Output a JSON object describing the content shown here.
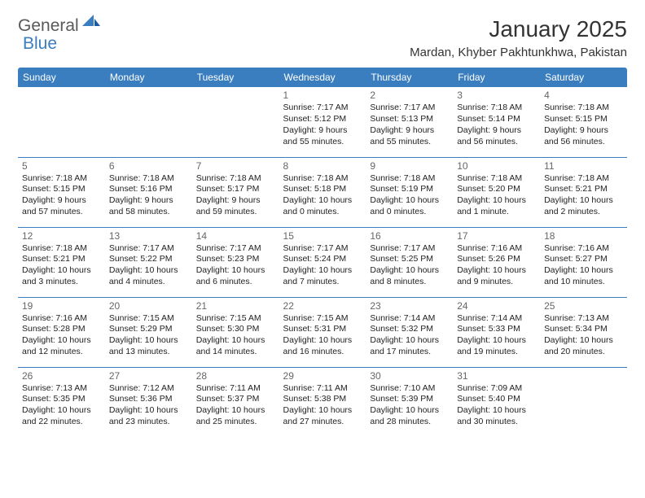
{
  "logo": {
    "text1": "General",
    "text2": "Blue"
  },
  "title": "January 2025",
  "location": "Mardan, Khyber Pakhtunkhwa, Pakistan",
  "colors": {
    "header_bg": "#3a7ebf",
    "header_fg": "#ffffff",
    "border": "#3a7ebf",
    "text": "#222222",
    "daynum": "#666666"
  },
  "weekdays": [
    "Sunday",
    "Monday",
    "Tuesday",
    "Wednesday",
    "Thursday",
    "Friday",
    "Saturday"
  ],
  "weeks": [
    [
      null,
      null,
      null,
      {
        "d": "1",
        "sr": "Sunrise: 7:17 AM",
        "ss": "Sunset: 5:12 PM",
        "dl": "Daylight: 9 hours and 55 minutes."
      },
      {
        "d": "2",
        "sr": "Sunrise: 7:17 AM",
        "ss": "Sunset: 5:13 PM",
        "dl": "Daylight: 9 hours and 55 minutes."
      },
      {
        "d": "3",
        "sr": "Sunrise: 7:18 AM",
        "ss": "Sunset: 5:14 PM",
        "dl": "Daylight: 9 hours and 56 minutes."
      },
      {
        "d": "4",
        "sr": "Sunrise: 7:18 AM",
        "ss": "Sunset: 5:15 PM",
        "dl": "Daylight: 9 hours and 56 minutes."
      }
    ],
    [
      {
        "d": "5",
        "sr": "Sunrise: 7:18 AM",
        "ss": "Sunset: 5:15 PM",
        "dl": "Daylight: 9 hours and 57 minutes."
      },
      {
        "d": "6",
        "sr": "Sunrise: 7:18 AM",
        "ss": "Sunset: 5:16 PM",
        "dl": "Daylight: 9 hours and 58 minutes."
      },
      {
        "d": "7",
        "sr": "Sunrise: 7:18 AM",
        "ss": "Sunset: 5:17 PM",
        "dl": "Daylight: 9 hours and 59 minutes."
      },
      {
        "d": "8",
        "sr": "Sunrise: 7:18 AM",
        "ss": "Sunset: 5:18 PM",
        "dl": "Daylight: 10 hours and 0 minutes."
      },
      {
        "d": "9",
        "sr": "Sunrise: 7:18 AM",
        "ss": "Sunset: 5:19 PM",
        "dl": "Daylight: 10 hours and 0 minutes."
      },
      {
        "d": "10",
        "sr": "Sunrise: 7:18 AM",
        "ss": "Sunset: 5:20 PM",
        "dl": "Daylight: 10 hours and 1 minute."
      },
      {
        "d": "11",
        "sr": "Sunrise: 7:18 AM",
        "ss": "Sunset: 5:21 PM",
        "dl": "Daylight: 10 hours and 2 minutes."
      }
    ],
    [
      {
        "d": "12",
        "sr": "Sunrise: 7:18 AM",
        "ss": "Sunset: 5:21 PM",
        "dl": "Daylight: 10 hours and 3 minutes."
      },
      {
        "d": "13",
        "sr": "Sunrise: 7:17 AM",
        "ss": "Sunset: 5:22 PM",
        "dl": "Daylight: 10 hours and 4 minutes."
      },
      {
        "d": "14",
        "sr": "Sunrise: 7:17 AM",
        "ss": "Sunset: 5:23 PM",
        "dl": "Daylight: 10 hours and 6 minutes."
      },
      {
        "d": "15",
        "sr": "Sunrise: 7:17 AM",
        "ss": "Sunset: 5:24 PM",
        "dl": "Daylight: 10 hours and 7 minutes."
      },
      {
        "d": "16",
        "sr": "Sunrise: 7:17 AM",
        "ss": "Sunset: 5:25 PM",
        "dl": "Daylight: 10 hours and 8 minutes."
      },
      {
        "d": "17",
        "sr": "Sunrise: 7:16 AM",
        "ss": "Sunset: 5:26 PM",
        "dl": "Daylight: 10 hours and 9 minutes."
      },
      {
        "d": "18",
        "sr": "Sunrise: 7:16 AM",
        "ss": "Sunset: 5:27 PM",
        "dl": "Daylight: 10 hours and 10 minutes."
      }
    ],
    [
      {
        "d": "19",
        "sr": "Sunrise: 7:16 AM",
        "ss": "Sunset: 5:28 PM",
        "dl": "Daylight: 10 hours and 12 minutes."
      },
      {
        "d": "20",
        "sr": "Sunrise: 7:15 AM",
        "ss": "Sunset: 5:29 PM",
        "dl": "Daylight: 10 hours and 13 minutes."
      },
      {
        "d": "21",
        "sr": "Sunrise: 7:15 AM",
        "ss": "Sunset: 5:30 PM",
        "dl": "Daylight: 10 hours and 14 minutes."
      },
      {
        "d": "22",
        "sr": "Sunrise: 7:15 AM",
        "ss": "Sunset: 5:31 PM",
        "dl": "Daylight: 10 hours and 16 minutes."
      },
      {
        "d": "23",
        "sr": "Sunrise: 7:14 AM",
        "ss": "Sunset: 5:32 PM",
        "dl": "Daylight: 10 hours and 17 minutes."
      },
      {
        "d": "24",
        "sr": "Sunrise: 7:14 AM",
        "ss": "Sunset: 5:33 PM",
        "dl": "Daylight: 10 hours and 19 minutes."
      },
      {
        "d": "25",
        "sr": "Sunrise: 7:13 AM",
        "ss": "Sunset: 5:34 PM",
        "dl": "Daylight: 10 hours and 20 minutes."
      }
    ],
    [
      {
        "d": "26",
        "sr": "Sunrise: 7:13 AM",
        "ss": "Sunset: 5:35 PM",
        "dl": "Daylight: 10 hours and 22 minutes."
      },
      {
        "d": "27",
        "sr": "Sunrise: 7:12 AM",
        "ss": "Sunset: 5:36 PM",
        "dl": "Daylight: 10 hours and 23 minutes."
      },
      {
        "d": "28",
        "sr": "Sunrise: 7:11 AM",
        "ss": "Sunset: 5:37 PM",
        "dl": "Daylight: 10 hours and 25 minutes."
      },
      {
        "d": "29",
        "sr": "Sunrise: 7:11 AM",
        "ss": "Sunset: 5:38 PM",
        "dl": "Daylight: 10 hours and 27 minutes."
      },
      {
        "d": "30",
        "sr": "Sunrise: 7:10 AM",
        "ss": "Sunset: 5:39 PM",
        "dl": "Daylight: 10 hours and 28 minutes."
      },
      {
        "d": "31",
        "sr": "Sunrise: 7:09 AM",
        "ss": "Sunset: 5:40 PM",
        "dl": "Daylight: 10 hours and 30 minutes."
      },
      null
    ]
  ]
}
